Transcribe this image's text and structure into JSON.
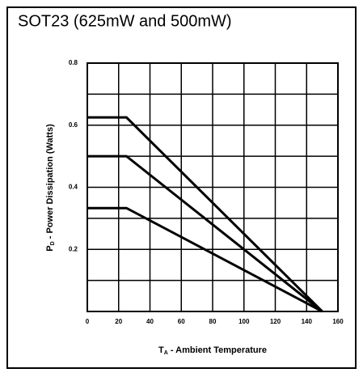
{
  "chart_data": {
    "type": "line",
    "title": "SOT23 (625mW and 500mW)",
    "x_label": {
      "symbol": "T",
      "subscript": "A",
      "text": " - Ambient Temperature"
    },
    "y_label": {
      "symbol": "P",
      "subscript": "D",
      "text": " - Power Dissipation (Watts)"
    },
    "x": [
      0,
      25,
      150
    ],
    "series": [
      {
        "color": "#000000",
        "values": [
          0.625,
          0.625,
          0
        ]
      },
      {
        "color": "#000000",
        "values": [
          0.5,
          0.5,
          0
        ]
      },
      {
        "color": "#000000",
        "values": [
          0.333,
          0.333,
          0
        ]
      }
    ],
    "xlim": [
      0,
      160
    ],
    "xticks": [
      0,
      20,
      40,
      60,
      80,
      100,
      120,
      140,
      160
    ],
    "ylim": [
      0,
      0.8
    ],
    "yticks": [
      0.2,
      0.4,
      0.6,
      0.8
    ],
    "yminor": [
      0.1,
      0.3,
      0.5,
      0.7
    ],
    "grid": true
  }
}
